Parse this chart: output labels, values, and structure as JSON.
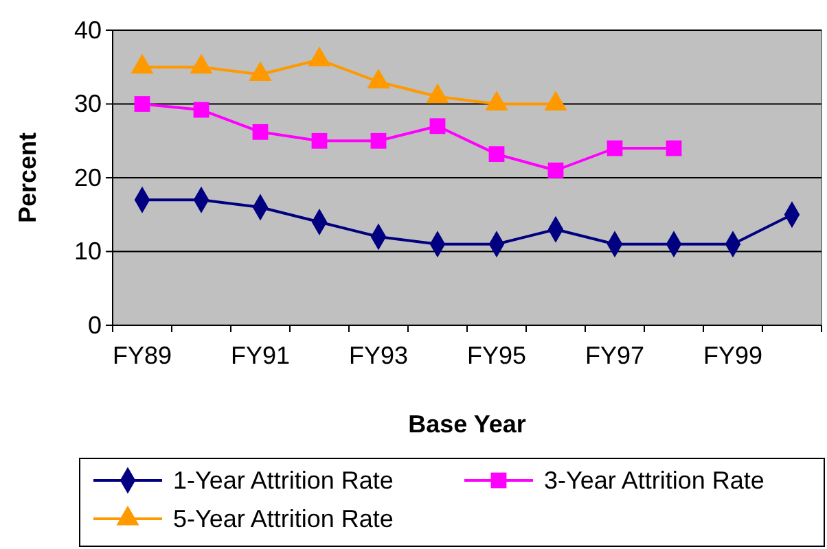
{
  "chart_data": {
    "type": "line",
    "xlabel": "Base Year",
    "ylabel": "Percent",
    "categories": [
      "FY89",
      null,
      "FY91",
      null,
      "FY93",
      null,
      "FY95",
      null,
      "FY97",
      null,
      "FY99",
      null
    ],
    "series": [
      {
        "name": "1-Year Attrition Rate",
        "color": "#000080",
        "marker": "diamond",
        "values": [
          17,
          17,
          16,
          14,
          12,
          11,
          11,
          13,
          11,
          11,
          11,
          15
        ]
      },
      {
        "name": "3-Year Attrition Rate",
        "color": "#ff00ff",
        "marker": "square",
        "values": [
          30,
          29.2,
          26.2,
          25,
          25,
          27,
          23.2,
          21,
          24,
          24,
          null,
          null
        ]
      },
      {
        "name": "5-Year Attrition Rate",
        "color": "#ff9900",
        "marker": "triangle",
        "values": [
          35,
          35,
          34,
          36,
          33,
          31,
          30,
          30,
          null,
          null,
          null,
          null
        ]
      }
    ],
    "ylim": [
      0,
      40
    ],
    "yticks": [
      0,
      10,
      20,
      30,
      40
    ],
    "grid": "y",
    "legend": "bottom"
  }
}
